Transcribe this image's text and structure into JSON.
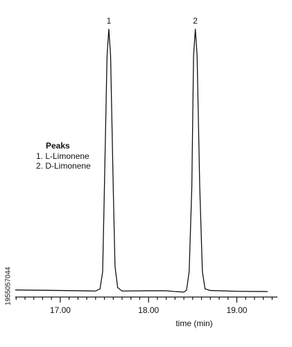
{
  "chart_data": {
    "type": "line",
    "x_label": "time (min)",
    "x": [
      16.49,
      17.0,
      17.4,
      17.45,
      17.48,
      17.5,
      17.53,
      17.55,
      17.57,
      17.6,
      17.62,
      17.65,
      17.7,
      18.0,
      18.2,
      18.3,
      18.4,
      18.43,
      18.46,
      18.49,
      18.51,
      18.53,
      18.55,
      18.58,
      18.61,
      18.64,
      18.7,
      19.0,
      19.35
    ],
    "series": [
      {
        "color": "#111111",
        "values": [
          1.1,
          0.9,
          0.7,
          1.5,
          8,
          40,
          90,
          100,
          90,
          40,
          10,
          2,
          0.7,
          0.8,
          0.8,
          0.5,
          0.3,
          1,
          8,
          40,
          90,
          100,
          90,
          40,
          8,
          1.5,
          0.9,
          0.6,
          0.5
        ]
      }
    ],
    "xlim": [
      16.49,
      19.46
    ],
    "ylim": [
      0,
      100
    ],
    "xticks": [
      {
        "value": 17,
        "label": "17.00"
      },
      {
        "value": 18,
        "label": "18.00"
      },
      {
        "value": 19,
        "label": "19.00"
      }
    ],
    "xminor_ticks": [
      16.5,
      16.6,
      16.7,
      16.8,
      16.9,
      17.1,
      17.2,
      17.3,
      17.4,
      17.5,
      17.6,
      17.7,
      17.8,
      17.9,
      18.1,
      18.2,
      18.3,
      18.4,
      18.5,
      18.6,
      18.7,
      18.8,
      18.9,
      19.1,
      19.2,
      19.3,
      19.4
    ],
    "annotations": [
      {
        "text": "1",
        "x": 17.55
      },
      {
        "text": "2",
        "x": 18.53
      }
    ],
    "legend": {
      "title": "Peaks",
      "items": [
        "1. L-Limonene",
        "2. D-Limonene"
      ]
    },
    "watermark": "1955057044"
  }
}
